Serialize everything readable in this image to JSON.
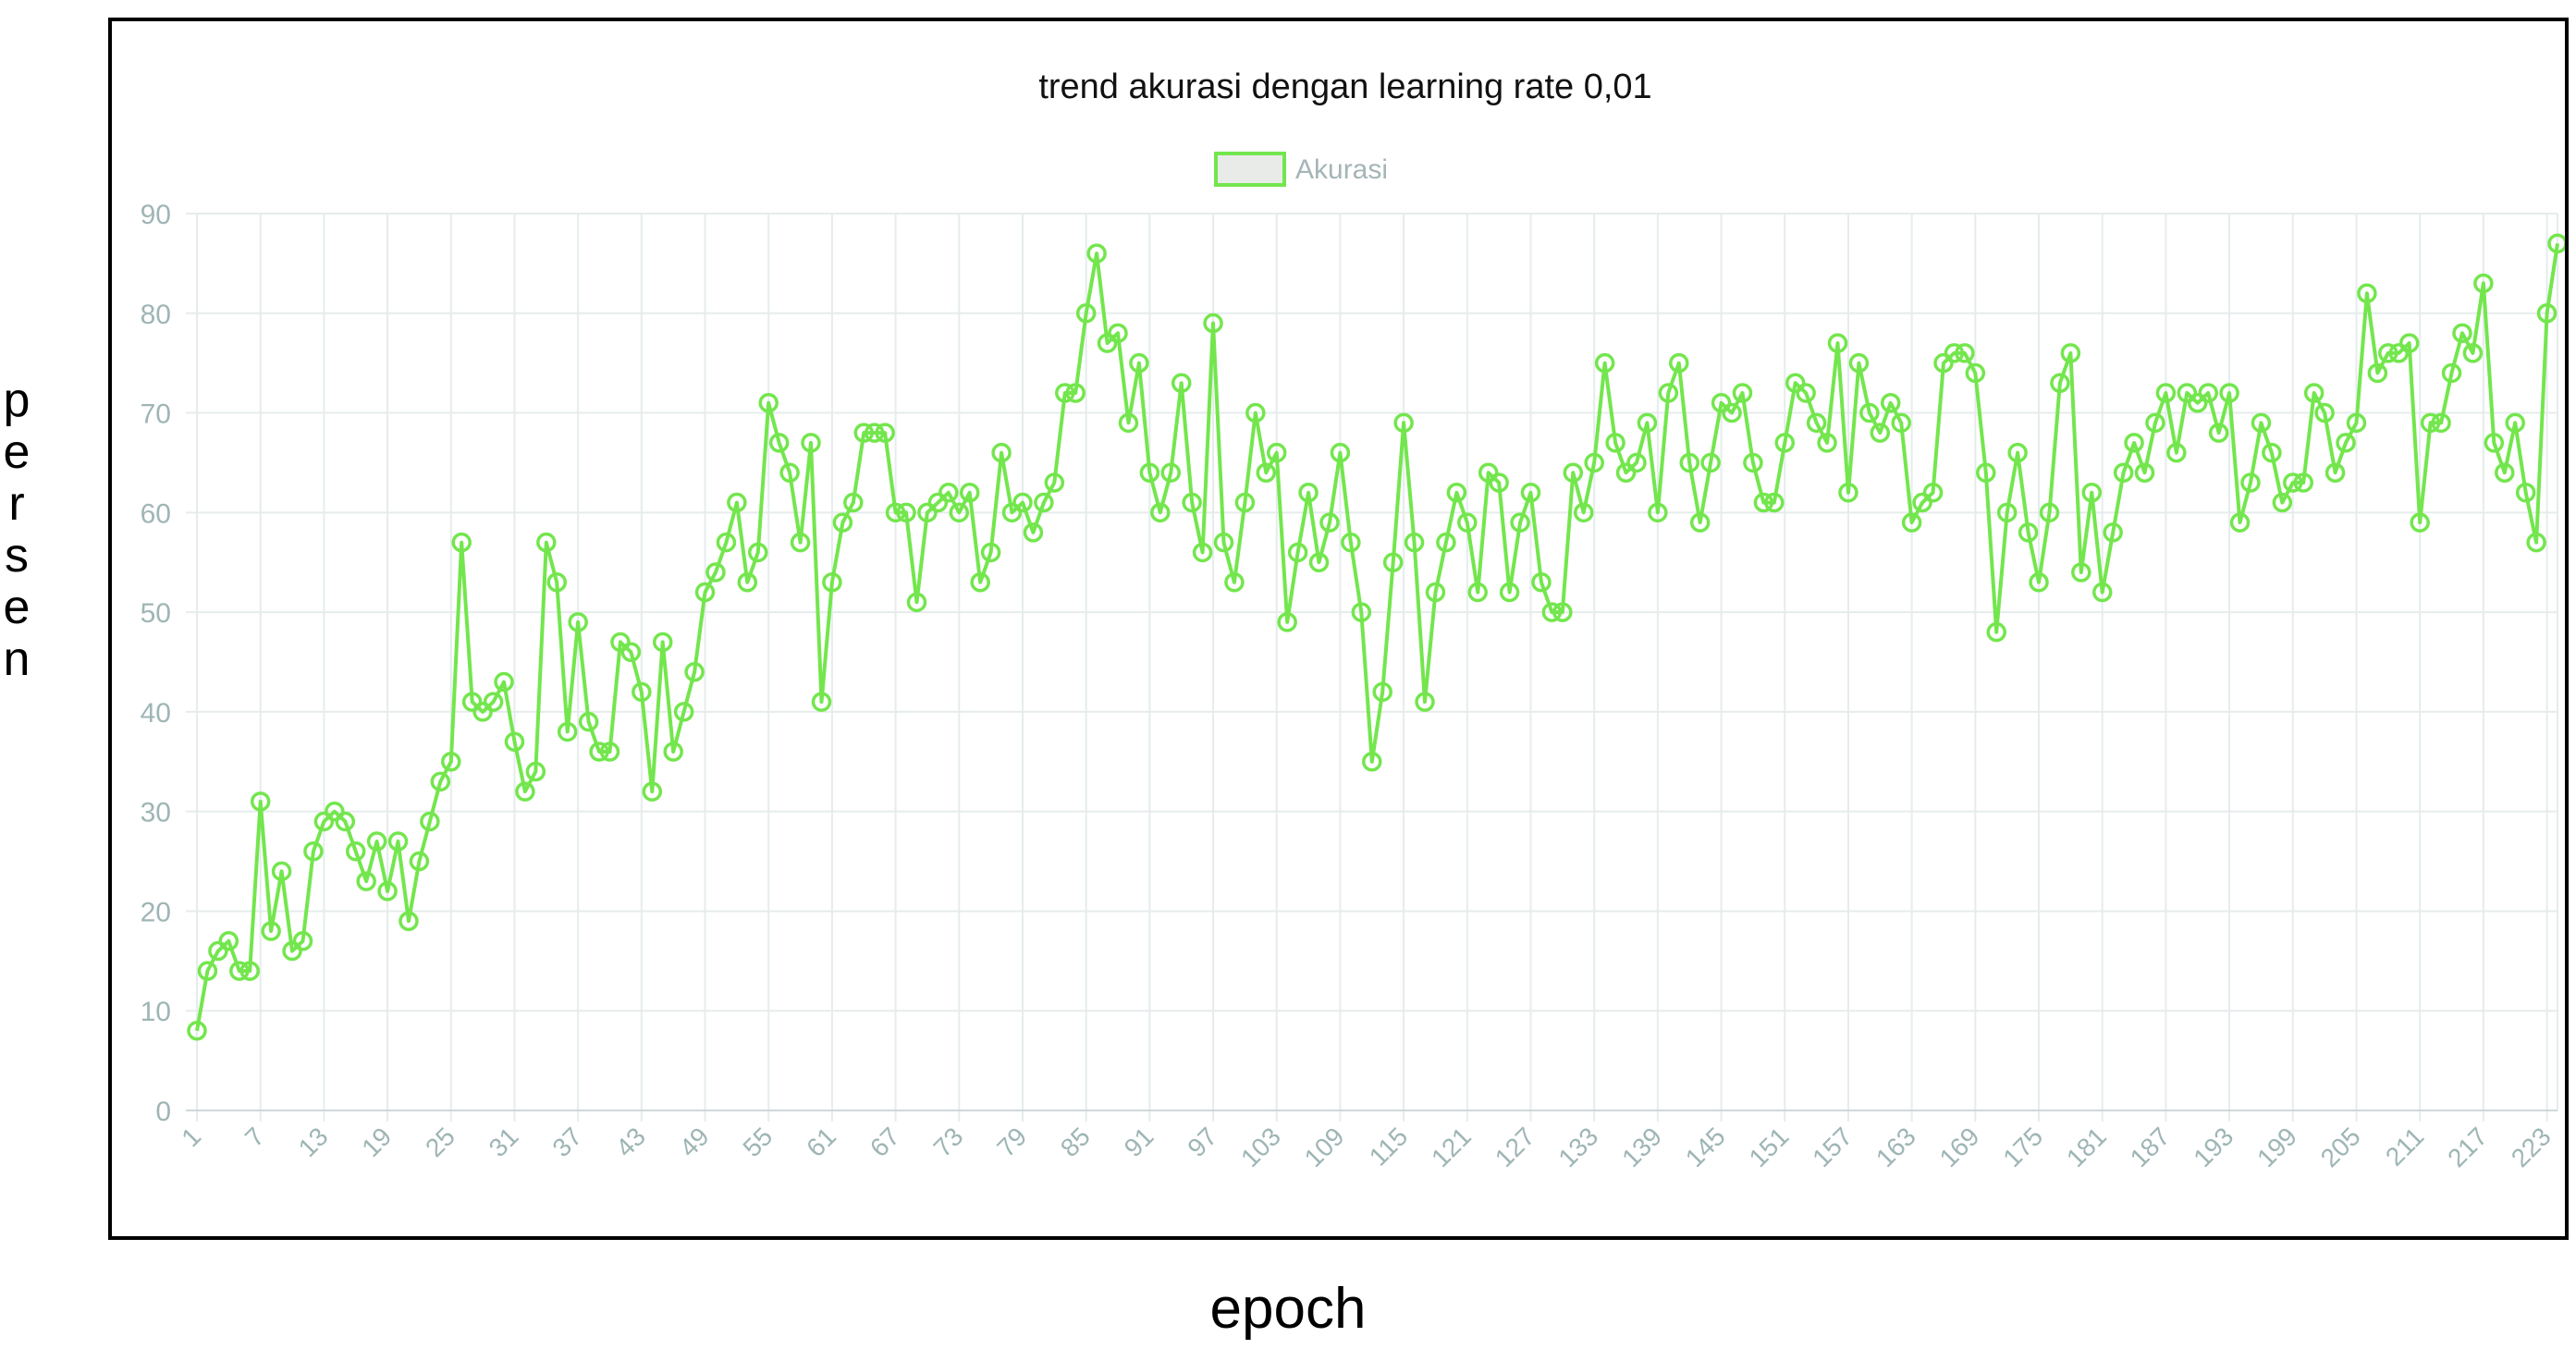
{
  "chart_data": {
    "type": "line",
    "title": "trend akurasi dengan learning rate 0,01",
    "xlabel": "epoch",
    "ylabel": "persen",
    "ylim": [
      0,
      90
    ],
    "yticks": [
      0,
      10,
      20,
      30,
      40,
      50,
      60,
      70,
      80,
      90
    ],
    "xtick_step": 6,
    "grid": true,
    "legend": "top-center",
    "line_color": "#73e64d",
    "grid_color": "#e6ecec",
    "tick_color": "#9fb5b5",
    "x_start": 1,
    "series": [
      {
        "name": "Akurasi",
        "values": [
          8,
          14,
          16,
          17,
          14,
          14,
          31,
          18,
          24,
          16,
          17,
          26,
          29,
          30,
          29,
          26,
          23,
          27,
          22,
          27,
          19,
          25,
          29,
          33,
          35,
          57,
          41,
          40,
          41,
          43,
          37,
          32,
          34,
          57,
          53,
          38,
          49,
          39,
          36,
          36,
          47,
          46,
          42,
          32,
          47,
          36,
          40,
          44,
          52,
          54,
          57,
          61,
          53,
          56,
          71,
          67,
          64,
          57,
          67,
          41,
          53,
          59,
          61,
          68,
          68,
          68,
          60,
          60,
          51,
          60,
          61,
          62,
          60,
          62,
          53,
          56,
          66,
          60,
          61,
          58,
          61,
          63,
          72,
          72,
          80,
          86,
          77,
          78,
          69,
          75,
          64,
          60,
          64,
          73,
          61,
          56,
          79,
          57,
          53,
          61,
          70,
          64,
          66,
          49,
          56,
          62,
          55,
          59,
          66,
          57,
          50,
          35,
          42,
          55,
          69,
          57,
          41,
          52,
          57,
          62,
          59,
          52,
          64,
          63,
          52,
          59,
          62,
          53,
          50,
          50,
          64,
          60,
          65,
          75,
          67,
          64,
          65,
          69,
          60,
          72,
          75,
          65,
          59,
          65,
          71,
          70,
          72,
          65,
          61,
          61,
          67,
          73,
          72,
          69,
          67,
          77,
          62,
          75,
          70,
          68,
          71,
          69,
          59,
          61,
          62,
          75,
          76,
          76,
          74,
          64,
          48,
          60,
          66,
          58,
          53,
          60,
          73,
          76,
          54,
          62,
          52,
          58,
          64,
          67,
          64,
          69,
          72,
          66,
          72,
          71,
          72,
          68,
          72,
          59,
          63,
          69,
          66,
          61,
          63,
          63,
          72,
          70,
          64,
          67,
          69,
          82,
          74,
          76,
          76,
          77,
          59,
          69,
          69,
          74,
          78,
          76,
          83,
          67,
          64,
          69,
          62,
          57,
          80,
          87
        ]
      }
    ]
  }
}
